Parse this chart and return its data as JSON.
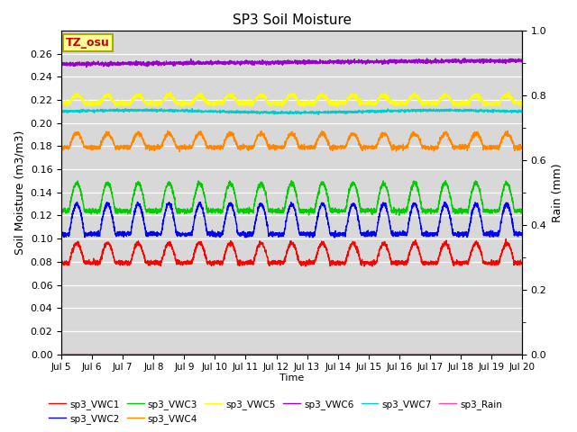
{
  "title": "SP3 Soil Moisture",
  "xlabel": "Time",
  "ylabel_left": "Soil Moisture (m3/m3)",
  "ylabel_right": "Rain (mm)",
  "ylim_left": [
    0.0,
    0.28
  ],
  "ylim_right": [
    0.0,
    1.0
  ],
  "colors": {
    "VWC1": "#ff0000",
    "VWC2": "#0000ff",
    "VWC3": "#00cc00",
    "VWC4": "#ff8800",
    "VWC5": "#ffff00",
    "VWC6": "#9900cc",
    "VWC7": "#00cccc",
    "Rain": "#ff44aa"
  },
  "annotation_text": "TZ_osu",
  "annotation_color": "#cc0000",
  "annotation_bg": "#ffff99",
  "annotation_border": "#aaaa00",
  "background_color": "#d8d8d8",
  "n_points": 3000,
  "legend_entries": [
    "sp3_VWC1",
    "sp3_VWC2",
    "sp3_VWC3",
    "sp3_VWC4",
    "sp3_VWC5",
    "sp3_VWC6",
    "sp3_VWC7",
    "sp3_Rain"
  ]
}
